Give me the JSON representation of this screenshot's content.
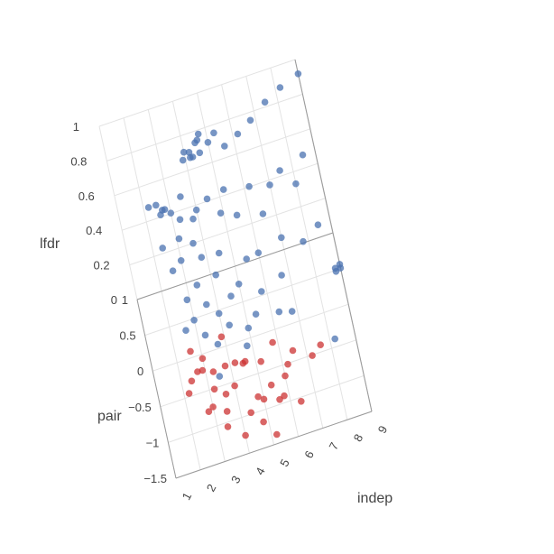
{
  "chart_data": {
    "type": "scatter3d",
    "axes": {
      "x": {
        "label": "indep",
        "range": [
          1,
          9
        ],
        "ticks": [
          "1",
          "2",
          "3",
          "4",
          "5",
          "6",
          "7",
          "8",
          "9"
        ]
      },
      "y": {
        "label": "pair",
        "range": [
          -1.5,
          1
        ],
        "ticks": [
          "−1.5",
          "−1",
          "−0.5",
          "0",
          "0.5",
          "1"
        ]
      },
      "z": {
        "label": "lfdr",
        "range": [
          0,
          1
        ],
        "ticks": [
          "0",
          "0.2",
          "0.4",
          "0.6",
          "0.8",
          "1"
        ]
      }
    },
    "grid": true,
    "colors": {
      "high_lfdr": "#4a72b0",
      "low_lfdr": "#cc3333"
    },
    "color_threshold": 0.2,
    "points": [
      {
        "x": 9,
        "y": 0.8,
        "z": 1
      },
      {
        "x": 8.2,
        "y": 0.75,
        "z": 0.98
      },
      {
        "x": 7.5,
        "y": 0.7,
        "z": 0.95
      },
      {
        "x": 6.8,
        "y": 0.65,
        "z": 0.9
      },
      {
        "x": 6.2,
        "y": 0.6,
        "z": 0.87
      },
      {
        "x": 5.6,
        "y": 0.55,
        "z": 0.85
      },
      {
        "x": 5.3,
        "y": 0.6,
        "z": 0.92
      },
      {
        "x": 5,
        "y": 0.55,
        "z": 0.9
      },
      {
        "x": 4.6,
        "y": 0.5,
        "z": 0.88
      },
      {
        "x": 4.3,
        "y": 0.5,
        "z": 0.87
      },
      {
        "x": 3.9,
        "y": 0.55,
        "z": 0.85
      },
      {
        "x": 4.7,
        "y": 0.8,
        "z": 0.86
      },
      {
        "x": 4.6,
        "y": 0.75,
        "z": 0.85
      },
      {
        "x": 4.5,
        "y": 0.7,
        "z": 0.86
      },
      {
        "x": 4.2,
        "y": 0.65,
        "z": 0.84
      },
      {
        "x": 4.2,
        "y": 0.6,
        "z": 0.83
      },
      {
        "x": 4,
        "y": 0.7,
        "z": 0.83
      },
      {
        "x": 2.5,
        "y": 0.4,
        "z": 0.72
      },
      {
        "x": 2.6,
        "y": 0.3,
        "z": 0.7
      },
      {
        "x": 3,
        "y": 0.4,
        "z": 0.65
      },
      {
        "x": 2.2,
        "y": 0.5,
        "z": 0.68
      },
      {
        "x": 2.8,
        "y": 0.45,
        "z": 0.66
      },
      {
        "x": 3.5,
        "y": 0.45,
        "z": 0.7
      },
      {
        "x": 4.5,
        "y": 0.4,
        "z": 0.66
      },
      {
        "x": 5.2,
        "y": 0.4,
        "z": 0.68
      },
      {
        "x": 6.2,
        "y": 0.35,
        "z": 0.67
      },
      {
        "x": 7.5,
        "y": 0.35,
        "z": 0.7
      },
      {
        "x": 8.5,
        "y": 0.5,
        "z": 0.68
      },
      {
        "x": 3.3,
        "y": 0.3,
        "z": 0.64
      },
      {
        "x": 3.8,
        "y": 0.2,
        "z": 0.66
      },
      {
        "x": 2.7,
        "y": 0.55,
        "z": 0.62
      },
      {
        "x": 4,
        "y": 0.4,
        "z": 0.62
      },
      {
        "x": 4.9,
        "y": 0.3,
        "z": 0.6
      },
      {
        "x": 5.5,
        "y": 0.25,
        "z": 0.58
      },
      {
        "x": 6.5,
        "y": 0.2,
        "z": 0.56
      },
      {
        "x": 7,
        "y": 0.45,
        "z": 0.6
      },
      {
        "x": 8,
        "y": 0.3,
        "z": 0.62
      },
      {
        "x": 3.1,
        "y": 0.2,
        "z": 0.58
      },
      {
        "x": 2.4,
        "y": 0.2,
        "z": 0.56
      },
      {
        "x": 3.6,
        "y": 0.15,
        "z": 0.55
      },
      {
        "x": 3,
        "y": 0.1,
        "z": 0.5
      },
      {
        "x": 3.8,
        "y": 0.1,
        "z": 0.48
      },
      {
        "x": 2.6,
        "y": 0.1,
        "z": 0.46
      },
      {
        "x": 4.5,
        "y": 0.15,
        "z": 0.45
      },
      {
        "x": 5.5,
        "y": 0.0,
        "z": 0.43
      },
      {
        "x": 6,
        "y": 0.1,
        "z": 0.4
      },
      {
        "x": 4.2,
        "y": 0.05,
        "z": 0.38
      },
      {
        "x": 3.4,
        "y": 0.05,
        "z": 0.36
      },
      {
        "x": 2.9,
        "y": -0.05,
        "z": 0.34
      },
      {
        "x": 5,
        "y": -0.05,
        "z": 0.33
      },
      {
        "x": 7.8,
        "y": 0.0,
        "z": 0.42
      },
      {
        "x": 7,
        "y": 0.1,
        "z": 0.44
      },
      {
        "x": 8.5,
        "y": 0.2,
        "z": 0.4
      },
      {
        "x": 3.6,
        "y": -0.1,
        "z": 0.3
      },
      {
        "x": 4.6,
        "y": -0.1,
        "z": 0.3
      },
      {
        "x": 6.7,
        "y": -0.1,
        "z": 0.32
      },
      {
        "x": 3,
        "y": -0.2,
        "z": 0.28
      },
      {
        "x": 4,
        "y": -0.2,
        "z": 0.27
      },
      {
        "x": 5.8,
        "y": -0.15,
        "z": 0.29
      },
      {
        "x": 8.8,
        "y": -0.2,
        "z": 0.3
      },
      {
        "x": 9,
        "y": -0.1,
        "z": 0.25
      },
      {
        "x": 8.8,
        "y": -0.05,
        "z": 0.22
      },
      {
        "x": 9,
        "y": 0.05,
        "z": 0.21
      },
      {
        "x": 2.6,
        "y": -0.2,
        "z": 0.24
      },
      {
        "x": 4.3,
        "y": -0.3,
        "z": 0.23
      },
      {
        "x": 3.3,
        "y": -0.3,
        "z": 0.22
      },
      {
        "x": 5.4,
        "y": -0.3,
        "z": 0.24
      },
      {
        "x": 6.3,
        "y": -0.3,
        "z": 0.21
      },
      {
        "x": 5,
        "y": -0.4,
        "z": 0.22
      },
      {
        "x": 3.7,
        "y": -0.45,
        "z": 0.21
      },
      {
        "x": 6.8,
        "y": -0.4,
        "z": 0.23
      },
      {
        "x": 4.8,
        "y": -0.6,
        "z": 0.21
      },
      {
        "x": 8.2,
        "y": -0.9,
        "z": 0.21
      },
      {
        "x": 3.5,
        "y": -0.9,
        "z": 0.22
      },
      {
        "x": 3,
        "y": -0.3,
        "z": 0.1
      },
      {
        "x": 3.3,
        "y": -0.4,
        "z": 0.05
      },
      {
        "x": 2.7,
        "y": -0.5,
        "z": 0.12
      },
      {
        "x": 3.8,
        "y": -0.45,
        "z": 0.08
      },
      {
        "x": 4.2,
        "y": -0.55,
        "z": 0.12
      },
      {
        "x": 2.4,
        "y": -0.4,
        "z": 0.04
      },
      {
        "x": 2.2,
        "y": -0.6,
        "z": 0.06
      },
      {
        "x": 3.6,
        "y": -0.7,
        "z": 0.03
      },
      {
        "x": 4.6,
        "y": -0.65,
        "z": 0.15
      },
      {
        "x": 5.2,
        "y": -0.6,
        "z": 0.1
      },
      {
        "x": 5.8,
        "y": -0.5,
        "z": 0.14
      },
      {
        "x": 6.5,
        "y": -0.55,
        "z": 0.08
      },
      {
        "x": 4,
        "y": -0.8,
        "z": 0.1
      },
      {
        "x": 3.2,
        "y": -0.85,
        "z": 0.14
      },
      {
        "x": 2.8,
        "y": -0.9,
        "z": 0.05
      },
      {
        "x": 4.8,
        "y": -0.9,
        "z": 0.04
      },
      {
        "x": 5.4,
        "y": -1.0,
        "z": 0.12
      },
      {
        "x": 6.2,
        "y": -0.9,
        "z": 0.16
      },
      {
        "x": 7.2,
        "y": -0.75,
        "z": 0.1
      },
      {
        "x": 3.5,
        "y": -1.05,
        "z": 0.08
      },
      {
        "x": 4.4,
        "y": -1.1,
        "z": 0.05
      },
      {
        "x": 5,
        "y": -1.2,
        "z": 0.14
      },
      {
        "x": 5.8,
        "y": -1.15,
        "z": 0.1
      },
      {
        "x": 3,
        "y": -1.1,
        "z": 0.15
      },
      {
        "x": 4,
        "y": -1.3,
        "z": 0.02
      },
      {
        "x": 4.8,
        "y": -1.35,
        "z": 0.08
      },
      {
        "x": 5.6,
        "y": -1.3,
        "z": 0.15
      },
      {
        "x": 6.4,
        "y": -1.2,
        "z": 0.06
      },
      {
        "x": 3.4,
        "y": -1.35,
        "z": 0.12
      },
      {
        "x": 5.2,
        "y": -1.5,
        "z": 0.05
      },
      {
        "x": 2.6,
        "y": -0.3,
        "z": 0.16
      },
      {
        "x": 3.9,
        "y": -0.2,
        "z": 0.14
      },
      {
        "x": 4.5,
        "y": -0.35,
        "z": 0.02
      },
      {
        "x": 6,
        "y": -0.7,
        "z": 0.02
      },
      {
        "x": 7.6,
        "y": -0.55,
        "z": 0.06
      },
      {
        "x": 2.9,
        "y": -0.65,
        "z": 0.18
      }
    ]
  }
}
